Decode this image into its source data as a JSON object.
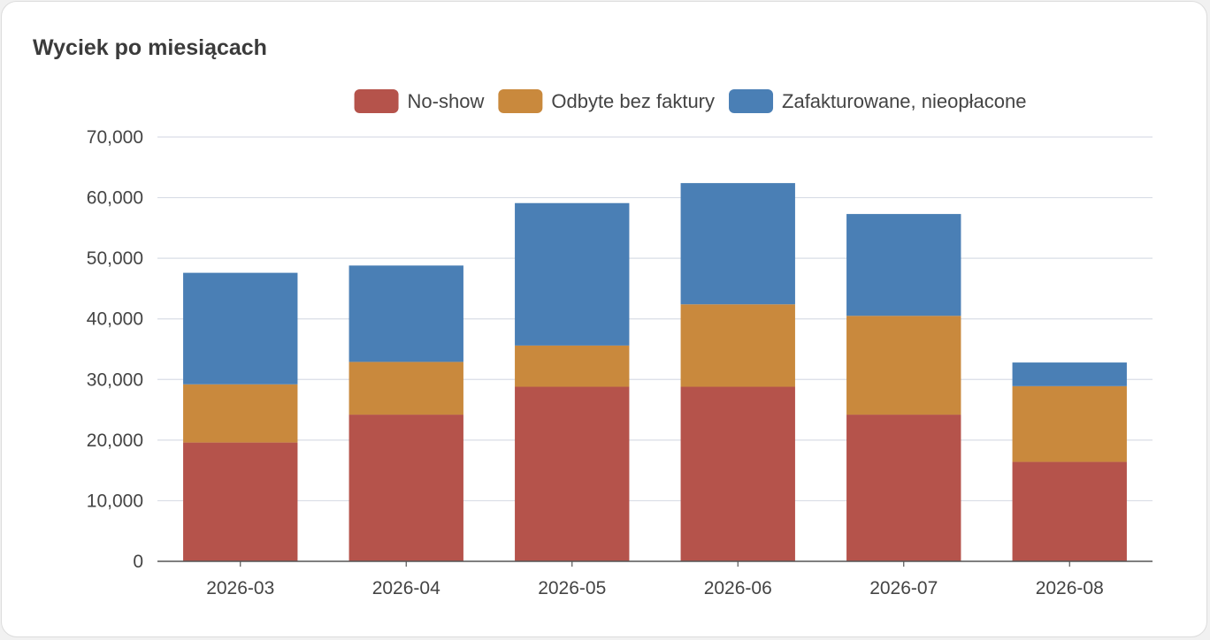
{
  "card": {
    "title": "Wyciek po miesiącach"
  },
  "chart_data": {
    "type": "bar",
    "stacked": true,
    "categories": [
      "2026-03",
      "2026-04",
      "2026-05",
      "2026-06",
      "2026-07",
      "2026-08"
    ],
    "series": [
      {
        "name": "No-show",
        "color": "#b5534b",
        "values": [
          19600,
          24200,
          28800,
          28800,
          24200,
          16400
        ]
      },
      {
        "name": "Odbyte bez faktury",
        "color": "#c9893d",
        "values": [
          9600,
          8700,
          6800,
          13600,
          16300,
          12500
        ]
      },
      {
        "name": "Zafakturowane, nieopłacone",
        "color": "#4a7fb5",
        "values": [
          18400,
          15900,
          23500,
          20000,
          16800,
          3900
        ]
      }
    ],
    "yticks": [
      "0",
      "10,000",
      "20,000",
      "30,000",
      "40,000",
      "50,000",
      "60,000",
      "70,000"
    ],
    "ylim": [
      0,
      70000
    ],
    "grid": true,
    "legend_position": "top-center"
  }
}
